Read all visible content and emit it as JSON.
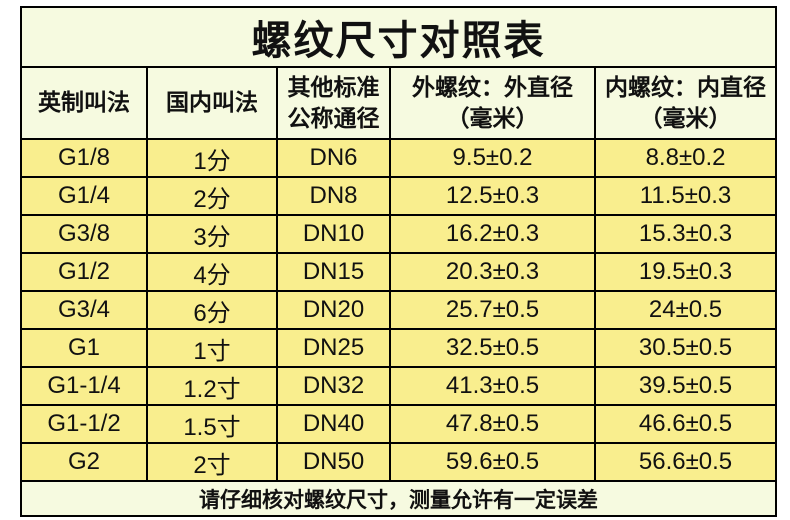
{
  "title": "螺纹尺寸对照表",
  "columns": [
    "英制叫法",
    "国内叫法",
    "其他标准\n公称通径",
    "外螺纹：外直径\n（毫米）",
    "内螺纹：内直径\n（毫米）"
  ],
  "rows": [
    [
      "G1/8",
      "1分",
      "DN6",
      "9.5±0.2",
      "8.8±0.2"
    ],
    [
      "G1/4",
      "2分",
      "DN8",
      "12.5±0.3",
      "11.5±0.3"
    ],
    [
      "G3/8",
      "3分",
      "DN10",
      "16.2±0.3",
      "15.3±0.3"
    ],
    [
      "G1/2",
      "4分",
      "DN15",
      "20.3±0.3",
      "19.5±0.3"
    ],
    [
      "G3/4",
      "6分",
      "DN20",
      "25.7±0.5",
      "24±0.5"
    ],
    [
      "G1",
      "1寸",
      "DN25",
      "32.5±0.5",
      "30.5±0.5"
    ],
    [
      "G1-1/4",
      "1.2寸",
      "DN32",
      "41.3±0.5",
      "39.5±0.5"
    ],
    [
      "G1-1/2",
      "1.5寸",
      "DN40",
      "47.8±0.5",
      "46.6±0.5"
    ],
    [
      "G2",
      "2寸",
      "DN50",
      "59.6±0.5",
      "56.6±0.5"
    ]
  ],
  "footer_note": "请仔细核对螺纹尺寸，测量允许有一定误差",
  "colors": {
    "panel_bg": "#f6fae0",
    "row_bg": "#f9ee8e",
    "border": "#000000",
    "text": "#111111",
    "page_bg": "#ffffff"
  }
}
